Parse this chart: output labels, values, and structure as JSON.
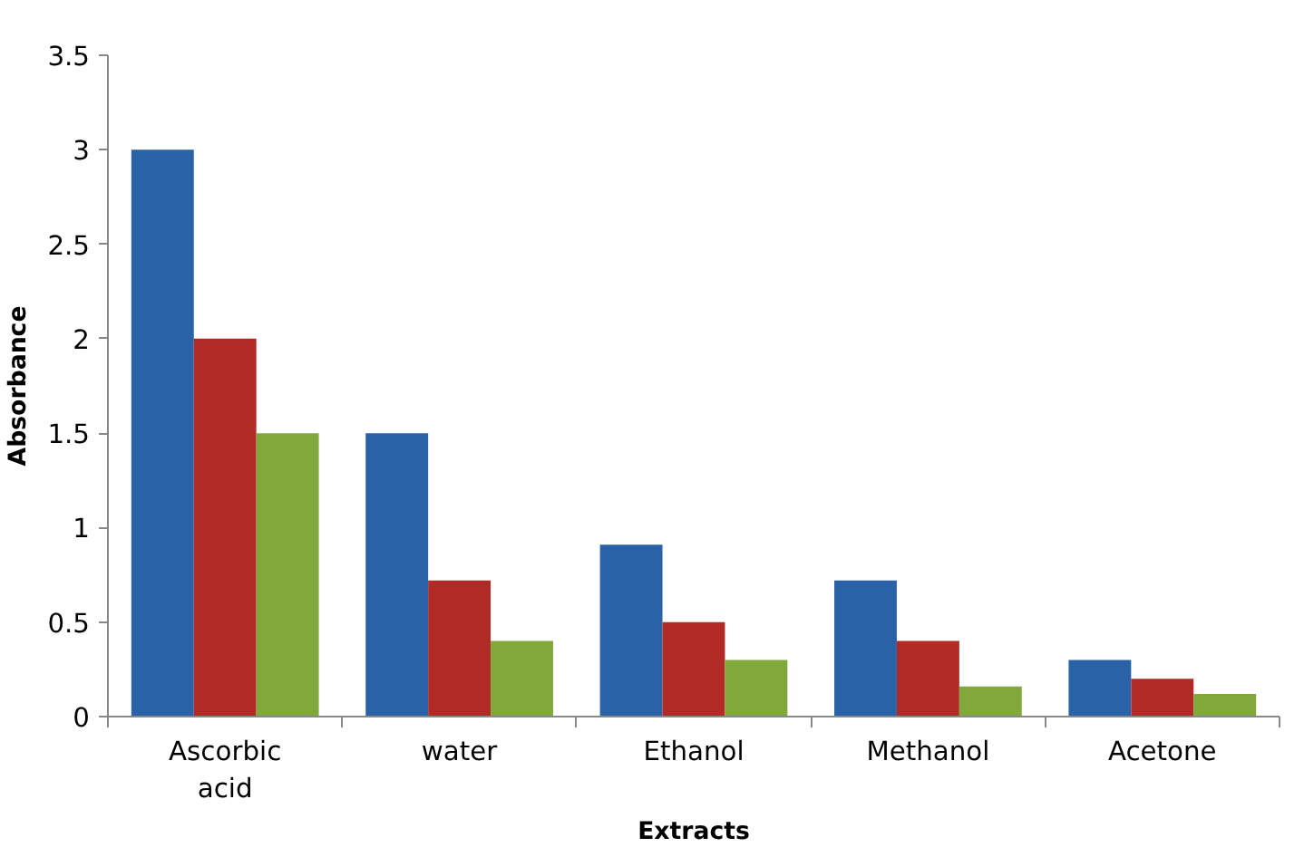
{
  "chart_data": {
    "type": "bar",
    "xlabel": "Extracts",
    "ylabel": "Absorbance",
    "categories": [
      "Ascorbic acid",
      "water",
      "Ethanol",
      "Methanol",
      "Acetone"
    ],
    "series": [
      {
        "color": "#2a62a8",
        "values": [
          3.0,
          1.5,
          0.91,
          0.72,
          0.3
        ]
      },
      {
        "color": "#b02a26",
        "values": [
          2.0,
          0.72,
          0.5,
          0.4,
          0.2
        ]
      },
      {
        "color": "#80a83a",
        "values": [
          1.5,
          0.4,
          0.3,
          0.16,
          0.12
        ]
      }
    ],
    "ylim": [
      0,
      3.5
    ],
    "yticks": [
      0,
      0.5,
      1,
      1.5,
      2,
      2.5,
      3,
      3.5
    ],
    "grid": false
  }
}
